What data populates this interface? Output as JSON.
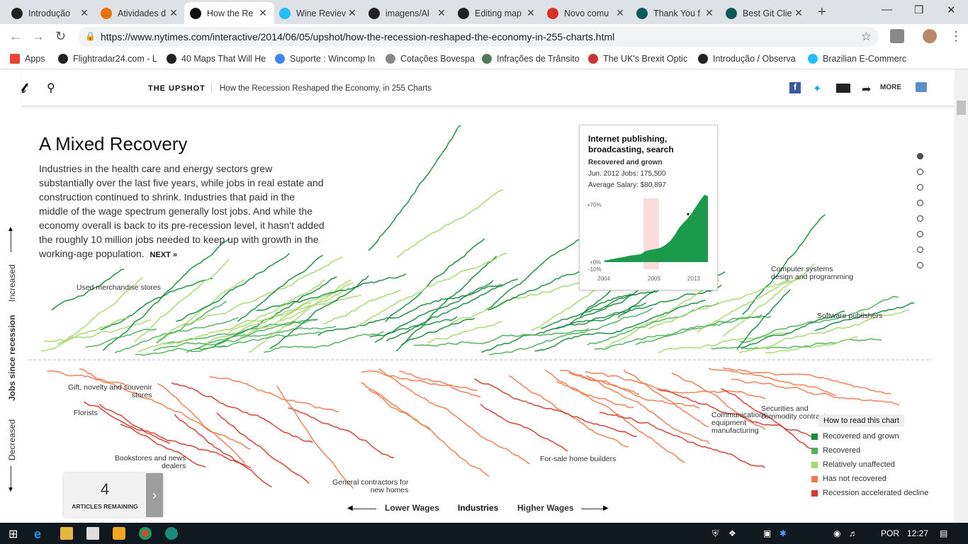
{
  "browser": {
    "tabs": [
      {
        "title": "Introdução",
        "icon": "github-like-icon",
        "color": "#222"
      },
      {
        "title": "Atividades d",
        "icon": "atividades-icon",
        "color": "#e8710a"
      },
      {
        "title": "How the Re",
        "icon": "nyt-icon",
        "color": "#111"
      },
      {
        "title": "Wine Reviev",
        "icon": "kaggle-icon",
        "color": "#20beff"
      },
      {
        "title": "imagens/Al",
        "icon": "github-icon",
        "color": "#222"
      },
      {
        "title": "Editing map",
        "icon": "github-icon",
        "color": "#222"
      },
      {
        "title": "Novo comu",
        "icon": "gmail-icon",
        "color": "#d93025"
      },
      {
        "title": "Thank You f",
        "icon": "gitkraken-icon",
        "color": "#0b5a5a"
      },
      {
        "title": "Best Git Clie",
        "icon": "gitkraken-icon",
        "color": "#0b5a5a"
      }
    ],
    "new_tab": "+",
    "url": "https://www.nytimes.com/interactive/2014/06/05/upshot/how-the-recession-reshaped-the-economy-in-255-charts.html",
    "bookmarks": [
      {
        "label": "Apps",
        "icon": "apps-grid-icon"
      },
      {
        "label": "Flightradar24.com - L",
        "icon": "flightradar-icon"
      },
      {
        "label": "40 Maps That Will He",
        "icon": "maps-icon"
      },
      {
        "label": "Suporte : Wincomp In",
        "icon": "globe-icon"
      },
      {
        "label": "Cotações Bovespa",
        "icon": "page-icon"
      },
      {
        "label": "Infrações de Trânsito",
        "icon": "detran-icon"
      },
      {
        "label": "The UK's Brexit Optic",
        "icon": "brexit-icon"
      },
      {
        "label": "Introdução / Observa",
        "icon": "github-like-icon"
      },
      {
        "label": "Brazilian E-Commerc",
        "icon": "kaggle-icon"
      }
    ]
  },
  "header": {
    "section": "THE UPSHOT",
    "title": "How the Recession Reshaped the Economy, in 255 Charts",
    "more": "MORE"
  },
  "article": {
    "title": "A Mixed Recovery",
    "body": "Industries in the health care and energy sectors grew substantially over the last five years, while jobs in real estate and construction continued to shrink. Industries that paid in the middle of the wage spectrum generally lost jobs. And while the economy overall is back to its pre-recession level, it hasn't added the roughly 10 million jobs needed to keep up with growth in the working-age population.",
    "next": "NEXT »"
  },
  "chart": {
    "y_increased": "Increased",
    "y_title": "Jobs since recession",
    "y_decreased": "Decreased",
    "x_lower": "Lower Wages",
    "x_mid": "Industries",
    "x_higher": "Higher Wages",
    "labels": {
      "used": "Used merchandise stores",
      "gift1": "Gift, novelty and souvenir",
      "gift2": "stores",
      "florists": "Florists",
      "books1": "Bookstores and news",
      "books2": "dealers",
      "gc1": "General contractors for",
      "gc2": "new homes",
      "forsale": "For-sale home builders",
      "comm1": "Communications",
      "comm2": "equipment",
      "comm3": "manufacturing",
      "sec1": "Securities and",
      "sec2": "commodity contracts",
      "csd1": "Computer systems",
      "csd2": "design and programming",
      "soft": "Software publishers"
    }
  },
  "tooltip": {
    "industry": "Internet publishing, broadcasting, search",
    "status": "Recovered and grown",
    "jobs": "Jun. 2012 Jobs: 175,500",
    "salary": "Average Salary: $80,897",
    "y_ticks": [
      "+70%",
      "+0%",
      "-10%"
    ],
    "x_ticks": [
      "2004",
      "2009",
      "2013"
    ]
  },
  "legend": {
    "how_to": "How to read this chart",
    "items": [
      {
        "label": "Recovered and grown",
        "color": "#1a8a3e"
      },
      {
        "label": "Recovered",
        "color": "#4fb05a"
      },
      {
        "label": "Relatively unaffected",
        "color": "#a6d86e"
      },
      {
        "label": "Has not recovered",
        "color": "#ee7a4f"
      },
      {
        "label": "Recession accelerated decline",
        "color": "#d33a2f"
      }
    ]
  },
  "articles_remaining": {
    "count": "4",
    "label": "ARTICLES REMAINING"
  },
  "taskbar": {
    "lang": "POR",
    "time": "12:27"
  }
}
